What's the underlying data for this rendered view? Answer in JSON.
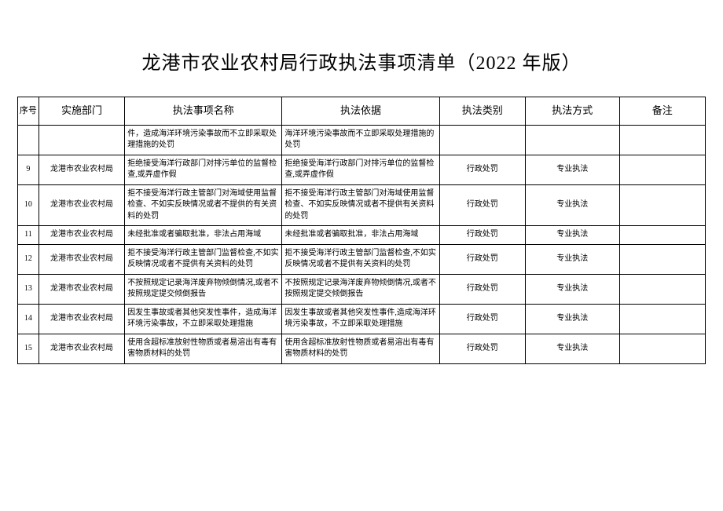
{
  "title": "龙港市农业农村局行政执法事项清单（2022 年版）",
  "columns": [
    "序号",
    "实施部门",
    "执法事项名称",
    "执法依据",
    "执法类别",
    "执法方式",
    "备注"
  ],
  "rows": [
    {
      "seq": "",
      "dept": "",
      "item": "件，造成海洋环境污染事故而不立即采取处理措施的处罚",
      "basis": "海洋环境污染事故而不立即采取处理措施的处罚",
      "cat": "",
      "mode": "",
      "remark": ""
    },
    {
      "seq": "9",
      "dept": "龙港市农业农村局",
      "item": "拒绝接受海洋行政部门对排污单位的监督检查,或弄虚作假",
      "basis": "拒绝接受海洋行政部门对排污单位的监督检查,或弄虚作假",
      "cat": "行政处罚",
      "mode": "专业执法",
      "remark": ""
    },
    {
      "seq": "10",
      "dept": "龙港市农业农村局",
      "item": "拒不接受海洋行政主管部门对海域使用监督检查、不如实反映情况或者不提供的有关资料的处罚",
      "basis": "拒不接受海洋行政主管部门对海域使用监督检查、不如实反映情况或者不提供有关资料的处罚",
      "cat": "行政处罚",
      "mode": "专业执法",
      "remark": ""
    },
    {
      "seq": "11",
      "dept": "龙港市农业农村局",
      "item": "未经批准或者骗取批准，非法占用海域",
      "basis": "未经批准或者骗取批准，非法占用海域",
      "cat": "行政处罚",
      "mode": "专业执法",
      "remark": ""
    },
    {
      "seq": "12",
      "dept": "龙港市农业农村局",
      "item": "拒不接受海洋行政主管部门监督检查,不如实反映情况或者不提供有关资料的处罚",
      "basis": "拒不接受海洋行政主管部门监督检查,不如实反映情况或者不提供有关资料的处罚",
      "cat": "行政处罚",
      "mode": "专业执法",
      "remark": ""
    },
    {
      "seq": "13",
      "dept": "龙港市农业农村局",
      "item": "不按照规定记录海洋废弃物倾倒情况,或者不按照规定提交倾倒报告",
      "basis": "不按照规定记录海洋废弃物倾倒情况,或者不按照规定提交倾倒报告",
      "cat": "行政处罚",
      "mode": "专业执法",
      "remark": ""
    },
    {
      "seq": "14",
      "dept": "龙港市农业农村局",
      "item": "因发生事故或者其他突发性事件，造成海洋环境污染事故，不立即采取处理措施",
      "basis": "因发生事故或者其他突发性事件,造成海洋环境污染事故，不立即采取处理措施",
      "cat": "行政处罚",
      "mode": "专业执法",
      "remark": ""
    },
    {
      "seq": "15",
      "dept": "龙港市农业农村局",
      "item": "使用含超标准放射性物质或者易溶出有毒有害物质材料的处罚",
      "basis": "使用含超标准放射性物质或者易溶出有毒有害物质材料的处罚",
      "cat": "行政处罚",
      "mode": "专业执法",
      "remark": ""
    }
  ]
}
